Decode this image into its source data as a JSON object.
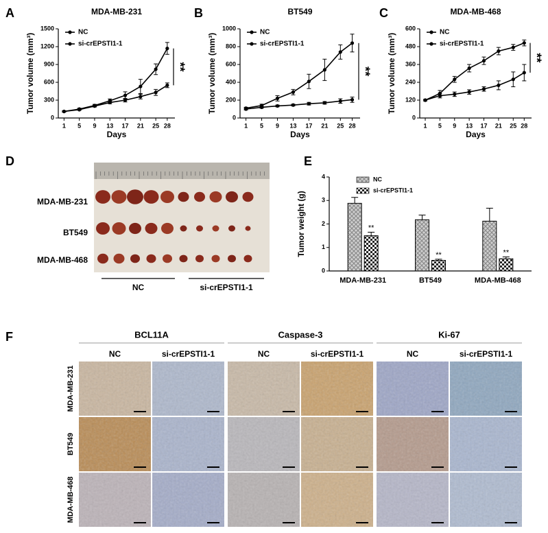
{
  "chart_data": [
    {
      "type": "line",
      "title": "MDA-MB-231",
      "xlabel": "Days",
      "ylabel": "Tumor  volume (mm³)",
      "x": [
        1,
        5,
        9,
        13,
        17,
        21,
        25,
        28
      ],
      "xlim": [
        -0.5,
        30
      ],
      "xticks": [
        1,
        5,
        9,
        13,
        17,
        21,
        25,
        28
      ],
      "ylim": [
        0,
        1500
      ],
      "yticks": [
        0,
        300,
        600,
        900,
        1200,
        1500
      ],
      "annotation": "**",
      "series": [
        {
          "name": "NC",
          "color": "#000000",
          "values": [
            110,
            150,
            210,
            290,
            380,
            530,
            820,
            1170
          ],
          "errors": [
            10,
            15,
            20,
            30,
            60,
            120,
            90,
            100
          ]
        },
        {
          "name": "si-crEPSTI1-1",
          "color": "#000000",
          "values": [
            110,
            140,
            200,
            260,
            300,
            360,
            430,
            550
          ],
          "errors": [
            10,
            10,
            15,
            20,
            30,
            40,
            50,
            40
          ]
        }
      ]
    },
    {
      "type": "line",
      "title": "BT549",
      "xlabel": "Days",
      "ylabel": "Tumor  volume (mm³)",
      "x": [
        1,
        5,
        9,
        13,
        17,
        21,
        25,
        28
      ],
      "xlim": [
        -0.5,
        30
      ],
      "xticks": [
        1,
        5,
        9,
        13,
        17,
        21,
        25,
        28
      ],
      "ylim": [
        0,
        1000
      ],
      "yticks": [
        0,
        200,
        400,
        600,
        800,
        1000
      ],
      "annotation": "**",
      "series": [
        {
          "name": "NC",
          "color": "#000000",
          "values": [
            110,
            140,
            220,
            290,
            410,
            540,
            740,
            840
          ],
          "errors": [
            10,
            15,
            30,
            30,
            80,
            120,
            80,
            100
          ]
        },
        {
          "name": "si-crEPSTI1-1",
          "color": "#000000",
          "values": [
            100,
            120,
            135,
            145,
            160,
            170,
            190,
            205
          ],
          "errors": [
            10,
            10,
            10,
            10,
            15,
            15,
            25,
            30
          ]
        }
      ]
    },
    {
      "type": "line",
      "title": "MDA-MB-468",
      "xlabel": "Days",
      "ylabel": "Tumor  volume (mm³)",
      "x": [
        1,
        5,
        9,
        13,
        17,
        21,
        25,
        28
      ],
      "xlim": [
        -0.5,
        30
      ],
      "xticks": [
        1,
        5,
        9,
        13,
        17,
        21,
        25,
        28
      ],
      "ylim": [
        0,
        600
      ],
      "yticks": [
        0,
        120,
        240,
        360,
        480,
        600
      ],
      "annotation": "**",
      "series": [
        {
          "name": "NC",
          "color": "#000000",
          "values": [
            120,
            165,
            260,
            335,
            385,
            450,
            475,
            505
          ],
          "errors": [
            5,
            20,
            20,
            25,
            25,
            25,
            20,
            20
          ]
        },
        {
          "name": "si-crEPSTI1-1",
          "color": "#000000",
          "values": [
            120,
            150,
            160,
            175,
            195,
            220,
            260,
            305
          ],
          "errors": [
            5,
            15,
            15,
            15,
            15,
            30,
            50,
            55
          ]
        }
      ]
    },
    {
      "type": "bar",
      "ylabel": "Tumor weight (g)",
      "categories": [
        "MDA-MB-231",
        "BT549",
        "MDA-MB-468"
      ],
      "ylim": [
        0,
        4
      ],
      "yticks": [
        0,
        1,
        2,
        3,
        4
      ],
      "annotation": "**",
      "series": [
        {
          "name": "NC",
          "color": "#8c8c8c",
          "values": [
            2.88,
            2.18,
            2.12
          ],
          "errors": [
            0.25,
            0.2,
            0.55
          ]
        },
        {
          "name": "si-crEPSTI1-1",
          "color": "#222222",
          "values": [
            1.5,
            0.45,
            0.52
          ],
          "errors": [
            0.15,
            0.05,
            0.08
          ]
        }
      ]
    }
  ],
  "panel_labels": [
    "A",
    "B",
    "C",
    "D",
    "E",
    "F"
  ],
  "photo": {
    "rows": [
      "MDA-MB-231",
      "BT549",
      "MDA-MB-468"
    ],
    "groups": [
      "NC",
      "si-crEPSTI1-1"
    ]
  },
  "ihc": {
    "markers": [
      "BCL11A",
      "Caspase-3",
      "Ki-67"
    ],
    "groups": [
      "NC",
      "si-crEPSTI1-1"
    ],
    "rows": [
      "MDA-MB-231",
      "BT549",
      "MDA-MB-468"
    ]
  }
}
